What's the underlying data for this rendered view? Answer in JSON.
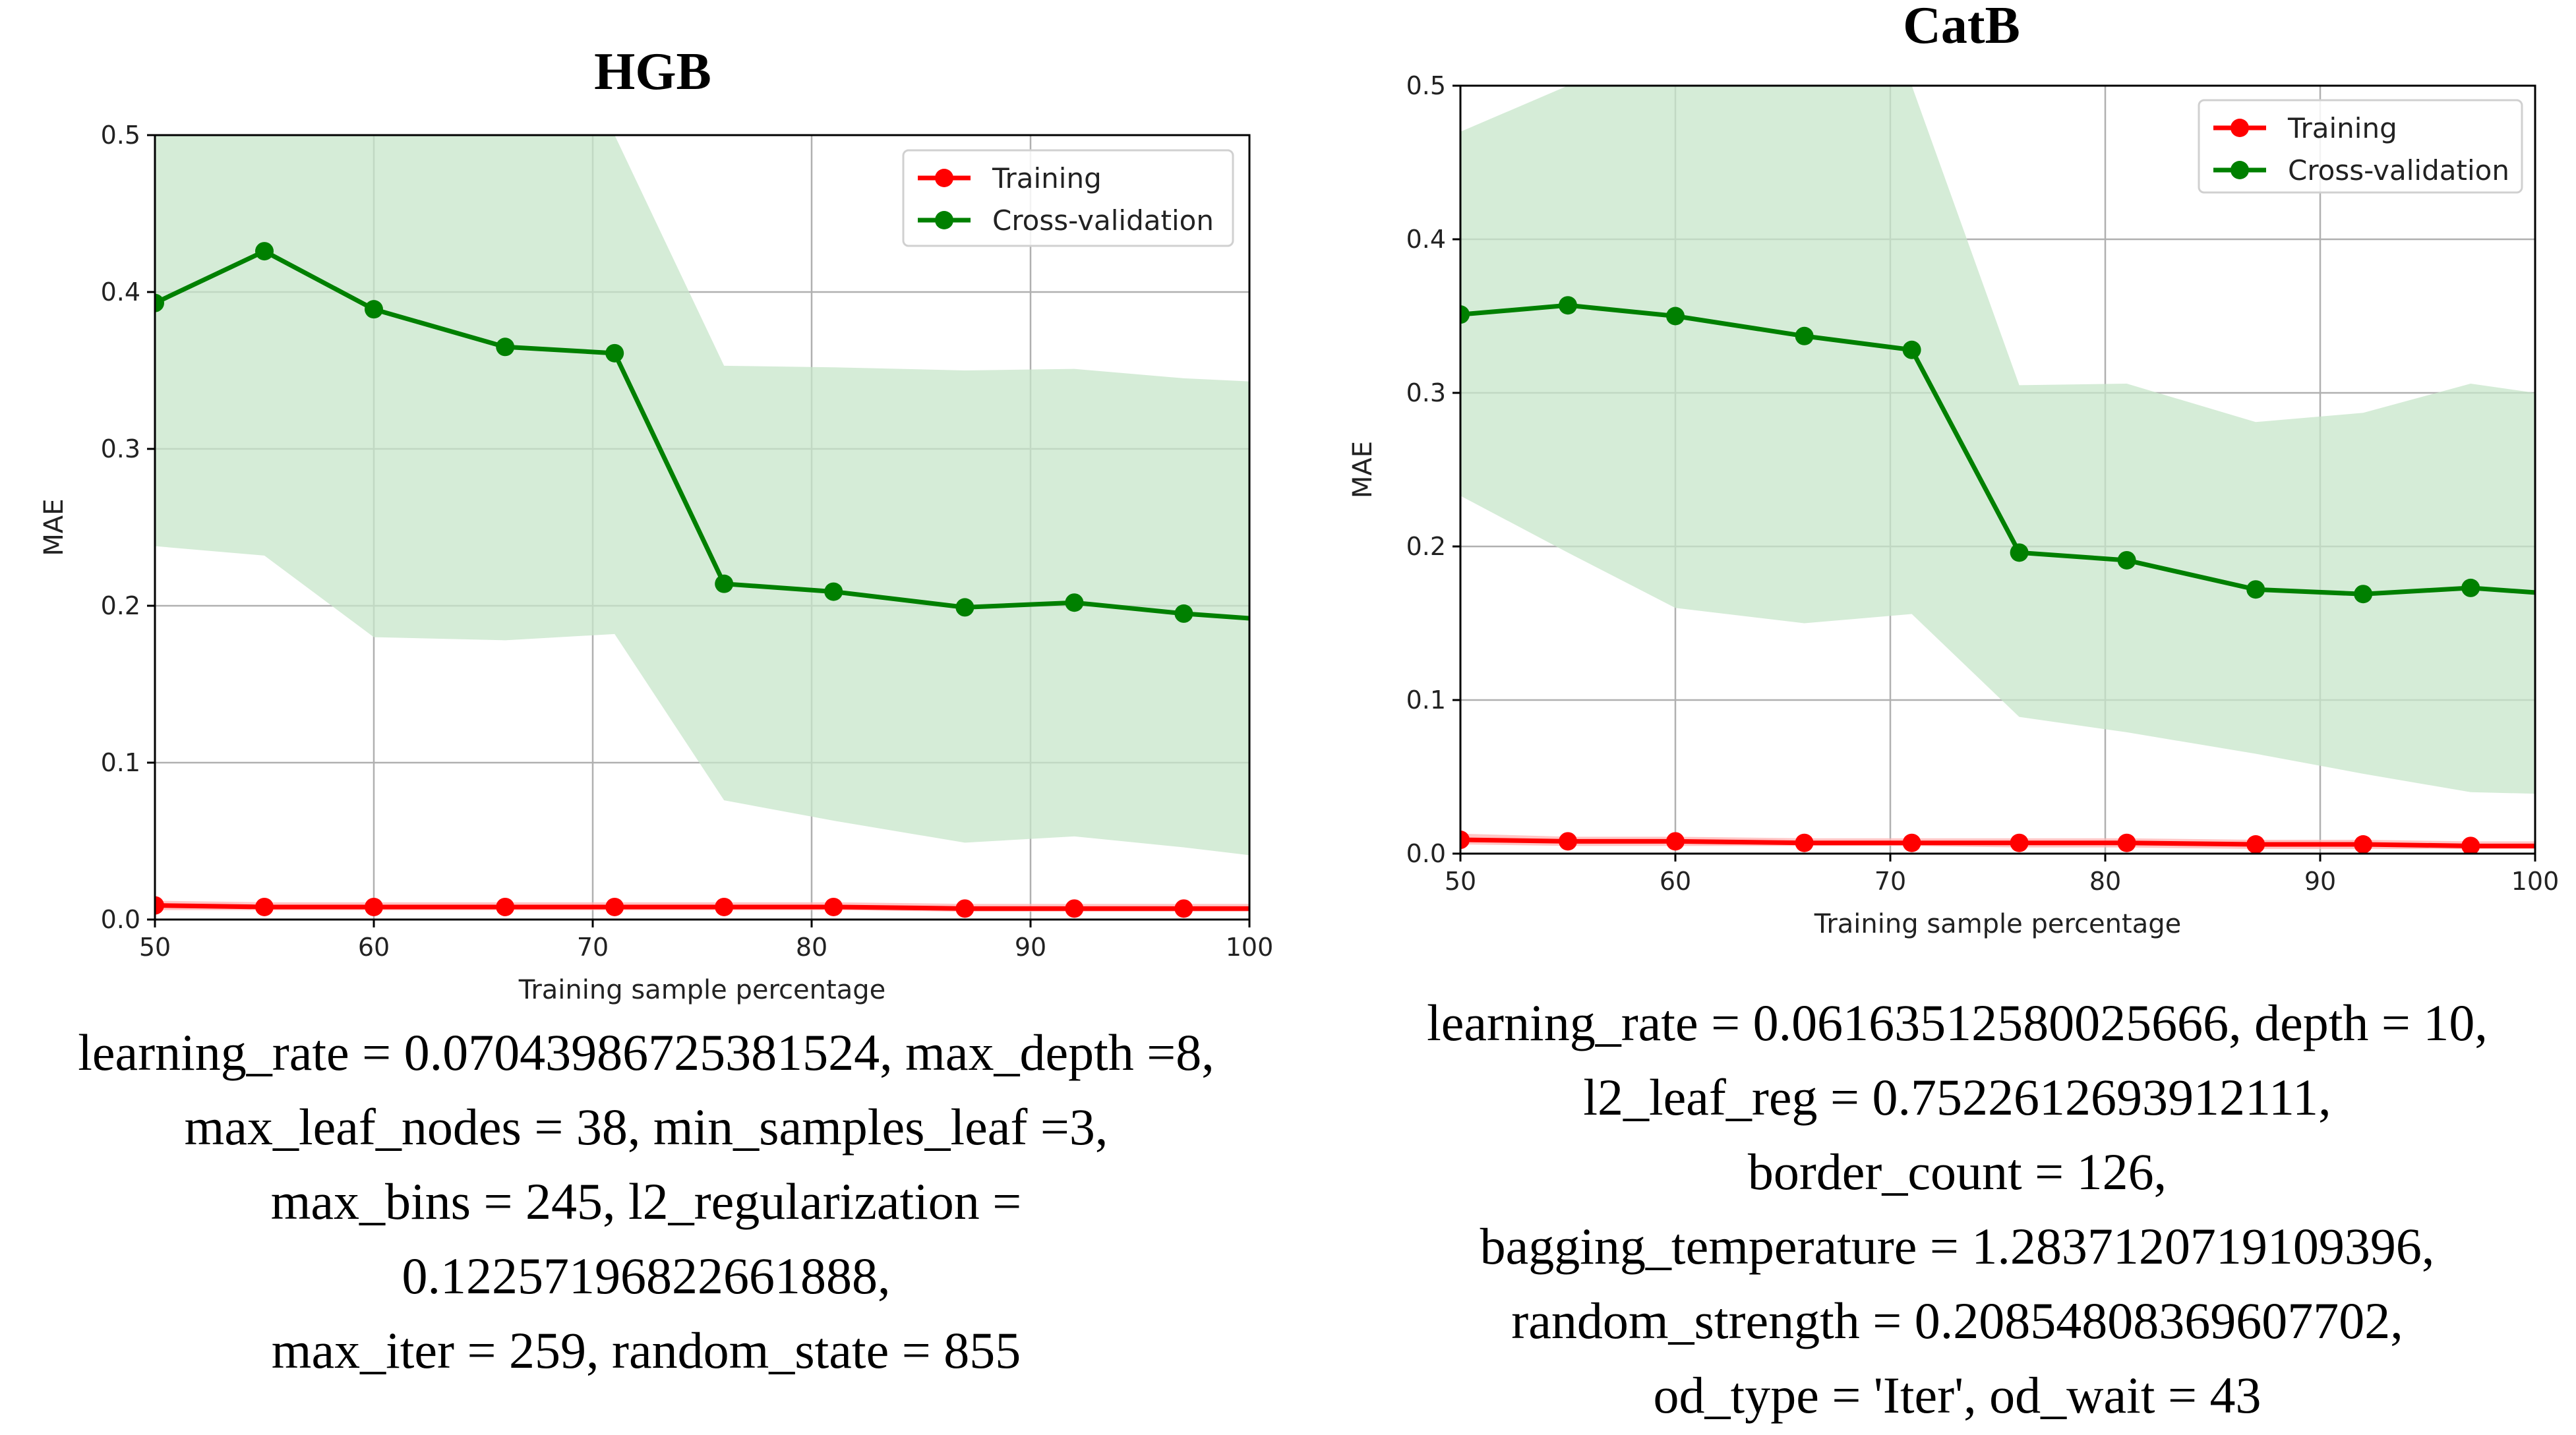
{
  "chart_data": [
    {
      "type": "line",
      "title": "HGB",
      "xlabel": "Training sample percentage",
      "ylabel": "MAE",
      "xlim": [
        50,
        100
      ],
      "ylim": [
        0.0,
        0.5
      ],
      "xticks": [
        "50",
        "60",
        "70",
        "80",
        "90",
        "100"
      ],
      "yticks": [
        "0.0",
        "0.1",
        "0.2",
        "0.3",
        "0.4",
        "0.5"
      ],
      "grid": true,
      "legend_position": "top-right",
      "x": [
        50,
        55,
        60,
        66,
        71,
        76,
        81,
        87,
        92,
        97,
        100
      ],
      "series": [
        {
          "name": "Training",
          "color": "#ff0000",
          "values": [
            0.009,
            0.008,
            0.008,
            0.008,
            0.008,
            0.008,
            0.008,
            0.007,
            0.007,
            0.007,
            0.007
          ],
          "band_lower": [
            0.006,
            0.006,
            0.006,
            0.006,
            0.006,
            0.006,
            0.006,
            0.005,
            0.005,
            0.005,
            0.005
          ],
          "band_upper": [
            0.012,
            0.011,
            0.011,
            0.011,
            0.011,
            0.011,
            0.011,
            0.01,
            0.01,
            0.01,
            0.01
          ],
          "markers": [
            true,
            true,
            true,
            true,
            true,
            true,
            true,
            true,
            true,
            true,
            false
          ]
        },
        {
          "name": "Cross-validation",
          "color": "#008000",
          "values": [
            0.393,
            0.426,
            0.389,
            0.365,
            0.361,
            0.214,
            0.209,
            0.199,
            0.202,
            0.195,
            0.192
          ],
          "band_lower": [
            0.238,
            0.232,
            0.18,
            0.178,
            0.182,
            0.076,
            0.063,
            0.049,
            0.053,
            0.046,
            0.041
          ],
          "band_upper": [
            0.5,
            0.5,
            0.5,
            0.5,
            0.5,
            0.353,
            0.352,
            0.35,
            0.351,
            0.345,
            0.343
          ],
          "markers": [
            true,
            true,
            true,
            true,
            true,
            true,
            true,
            true,
            true,
            true,
            false
          ]
        }
      ]
    },
    {
      "type": "line",
      "title": "CatB",
      "xlabel": "Training sample percentage",
      "ylabel": "MAE",
      "xlim": [
        50,
        100
      ],
      "ylim": [
        0.0,
        0.5
      ],
      "xticks": [
        "50",
        "60",
        "70",
        "80",
        "90",
        "100"
      ],
      "yticks": [
        "0.0",
        "0.1",
        "0.2",
        "0.3",
        "0.4",
        "0.5"
      ],
      "grid": true,
      "legend_position": "top-right",
      "x": [
        50,
        55,
        60,
        66,
        71,
        76,
        81,
        87,
        92,
        97,
        100
      ],
      "series": [
        {
          "name": "Training",
          "color": "#ff0000",
          "values": [
            0.009,
            0.008,
            0.008,
            0.007,
            0.007,
            0.007,
            0.007,
            0.006,
            0.006,
            0.005,
            0.005
          ],
          "band_lower": [
            0.006,
            0.005,
            0.005,
            0.005,
            0.005,
            0.004,
            0.004,
            0.003,
            0.003,
            0.003,
            0.003
          ],
          "band_upper": [
            0.013,
            0.011,
            0.011,
            0.01,
            0.01,
            0.01,
            0.01,
            0.009,
            0.009,
            0.008,
            0.008
          ],
          "markers": [
            true,
            true,
            true,
            true,
            true,
            true,
            true,
            true,
            true,
            true,
            false
          ]
        },
        {
          "name": "Cross-validation",
          "color": "#008000",
          "values": [
            0.351,
            0.357,
            0.35,
            0.337,
            0.328,
            0.196,
            0.191,
            0.172,
            0.169,
            0.173,
            0.17
          ],
          "band_lower": [
            0.233,
            0.196,
            0.16,
            0.15,
            0.156,
            0.089,
            0.079,
            0.065,
            0.052,
            0.04,
            0.039
          ],
          "band_upper": [
            0.47,
            0.5,
            0.5,
            0.5,
            0.5,
            0.305,
            0.306,
            0.281,
            0.287,
            0.306,
            0.3
          ],
          "markers": [
            true,
            true,
            true,
            true,
            true,
            true,
            true,
            true,
            true,
            true,
            false
          ]
        }
      ]
    }
  ],
  "captions": [
    {
      "lines": [
        "learning_rate = 0.07043986725381524, max_depth =8,",
        "max_leaf_nodes = 38, min_samples_leaf =3,",
        "max_bins = 245, l2_regularization =",
        "0.12257196822661888,",
        "max_iter = 259, random_state = 855"
      ]
    },
    {
      "lines": [
        "learning_rate = 0.06163512580025666, depth = 10,",
        "l2_leaf_reg = 0.7522612693912111,",
        "border_count = 126,",
        "bagging_temperature = 1.2837120719109396,",
        "random_strength = 0.20854808369607702,",
        "od_type = 'Iter', od_wait = 43"
      ]
    }
  ],
  "style": {
    "band_color": "#c7e6c9",
    "grid_color": "#b0b0b0",
    "axis_color": "#000000"
  }
}
